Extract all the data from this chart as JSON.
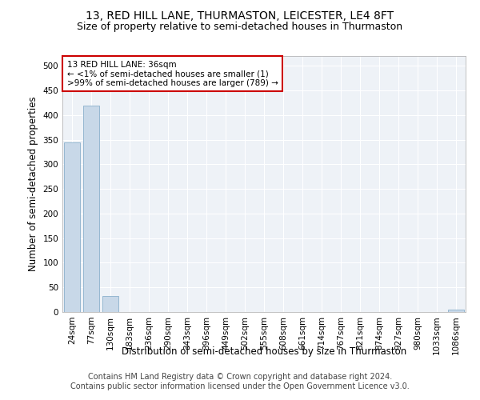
{
  "title": "13, RED HILL LANE, THURMASTON, LEICESTER, LE4 8FT",
  "subtitle": "Size of property relative to semi-detached houses in Thurmaston",
  "xlabel": "Distribution of semi-detached houses by size in Thurmaston",
  "ylabel": "Number of semi-detached properties",
  "categories": [
    "24sqm",
    "77sqm",
    "130sqm",
    "183sqm",
    "236sqm",
    "290sqm",
    "343sqm",
    "396sqm",
    "449sqm",
    "502sqm",
    "555sqm",
    "608sqm",
    "661sqm",
    "714sqm",
    "767sqm",
    "821sqm",
    "874sqm",
    "927sqm",
    "980sqm",
    "1033sqm",
    "1086sqm"
  ],
  "values": [
    345,
    420,
    33,
    0,
    0,
    0,
    0,
    0,
    0,
    0,
    0,
    0,
    0,
    0,
    0,
    0,
    0,
    0,
    0,
    0,
    5
  ],
  "bar_color": "#c8d8e8",
  "bar_edge_color": "#8ab0cc",
  "ylim": [
    0,
    520
  ],
  "yticks": [
    0,
    50,
    100,
    150,
    200,
    250,
    300,
    350,
    400,
    450,
    500
  ],
  "annotation_text": "13 RED HILL LANE: 36sqm\n← <1% of semi-detached houses are smaller (1)\n>99% of semi-detached houses are larger (789) →",
  "annotation_box_color": "#ffffff",
  "annotation_edge_color": "#cc0000",
  "footer_line1": "Contains HM Land Registry data © Crown copyright and database right 2024.",
  "footer_line2": "Contains public sector information licensed under the Open Government Licence v3.0.",
  "bg_color": "#eef2f7",
  "grid_color": "#ffffff",
  "title_fontsize": 10,
  "subtitle_fontsize": 9,
  "axis_label_fontsize": 8.5,
  "tick_fontsize": 7.5,
  "footer_fontsize": 7
}
